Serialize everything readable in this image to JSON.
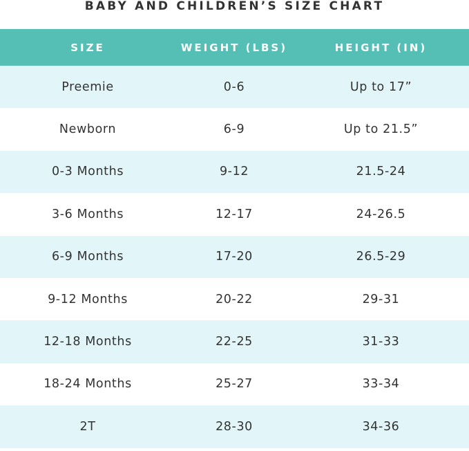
{
  "title": "BABY AND CHILDREN’S SIZE CHART",
  "colors": {
    "header_bg": "#56bfb5",
    "header_text": "#ffffff",
    "stripe_bg": "#e2f6f9",
    "plain_bg": "#ffffff",
    "text": "#333333"
  },
  "headers": {
    "size": "SIZE",
    "weight": "WEIGHT (LBS)",
    "height": "HEIGHT (IN)"
  },
  "rows": [
    {
      "size": "Preemie",
      "weight": "0-6",
      "height": "Up to 17”"
    },
    {
      "size": "Newborn",
      "weight": "6-9",
      "height": "Up to 21.5”"
    },
    {
      "size": "0-3 Months",
      "weight": "9-12",
      "height": "21.5-24"
    },
    {
      "size": "3-6 Months",
      "weight": "12-17",
      "height": "24-26.5"
    },
    {
      "size": "6-9 Months",
      "weight": "17-20",
      "height": "26.5-29"
    },
    {
      "size": "9-12 Months",
      "weight": "20-22",
      "height": "29-31"
    },
    {
      "size": "12-18 Months",
      "weight": "22-25",
      "height": "31-33"
    },
    {
      "size": "18-24 Months",
      "weight": "25-27",
      "height": "33-34"
    },
    {
      "size": "2T",
      "weight": "28-30",
      "height": "34-36"
    }
  ]
}
